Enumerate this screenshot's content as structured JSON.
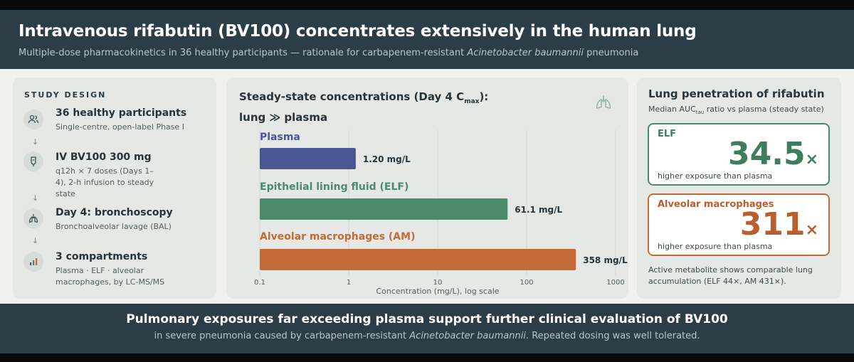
{
  "header": {
    "title": "Intravenous rifabutin (BV100) concentrates extensively in the human lung",
    "subtitle_pre": "Multiple-dose pharmacokinetics in 36 healthy participants — rationale for carbapenem-resistant ",
    "subtitle_italic": "Acinetobacter baumannii",
    "subtitle_post": " pneumonia"
  },
  "study_design": {
    "title": "STUDY DESIGN",
    "steps": [
      {
        "icon": "people-icon",
        "title": "36 healthy participants",
        "sub": "Single-centre, open-label Phase I"
      },
      {
        "icon": "iv-drip-icon",
        "title": "IV BV100 300 mg",
        "sub": "q12h × 7 doses (Days 1–4), 2-h infusion to steady state"
      },
      {
        "icon": "lungs-icon",
        "title": "Day 4: bronchoscopy",
        "sub": "Bronchoalveolar lavage (BAL)"
      },
      {
        "icon": "bar-chart-icon",
        "title": "3 compartments",
        "sub": "Plasma · ELF · alveolar macrophages, by LC-MS/MS"
      }
    ],
    "arrow": "↓"
  },
  "chart_panel": {
    "title_line1_pre": "Steady-state concentrations (Day 4 C",
    "title_line1_sub": "max",
    "title_line1_post": "):",
    "title_line2": "lung ≫ plasma"
  },
  "chart_data": {
    "type": "bar",
    "orientation": "horizontal",
    "scale": "log",
    "categories": [
      "Plasma",
      "Epithelial lining fluid (ELF)",
      "Alveolar macrophages (AM)"
    ],
    "values": [
      1.2,
      61.1,
      358
    ],
    "value_labels": [
      "1.20 mg/L",
      "61.1 mg/L",
      "358 mg/L"
    ],
    "xlim": [
      0.1,
      1000
    ],
    "xticks": [
      "0.1",
      "1",
      "10",
      "100",
      "1000"
    ],
    "xlabel": "Concentration (mg/L), log scale",
    "colors": [
      "#4a5694",
      "#4a8b6b",
      "#c46a38"
    ],
    "grid": true
  },
  "lung_penetration": {
    "title": "Lung penetration of rifabutin",
    "sub_pre": "Median AUC",
    "sub_sub": "tau",
    "sub_post": " ratio vs plasma (steady state)",
    "cards": [
      {
        "label": "ELF",
        "value": "34.5",
        "unit": "×",
        "foot": "higher exposure than plasma"
      },
      {
        "label": "Alveolar macrophages",
        "value": "311",
        "unit": "×",
        "foot": "higher exposure than plasma"
      }
    ],
    "note": "Active metabolite shows comparable lung accumulation (ELF 44×, AM 431×)."
  },
  "footer": {
    "line1": "Pulmonary exposures far exceeding plasma support further clinical evaluation of BV100",
    "line2_pre": "in severe pneumonia caused by carbapenem-resistant ",
    "line2_italic": "Acinetobacter baumannii",
    "line2_post": ". Repeated dosing was well tolerated."
  }
}
